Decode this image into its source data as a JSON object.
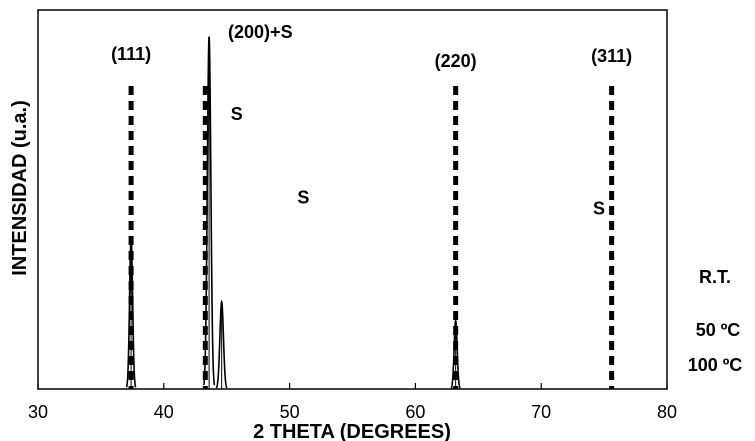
{
  "chart_data": {
    "type": "line",
    "xlabel": "2 THETA (DEGREES)",
    "ylabel": "INTENSIDAD (u.a.)",
    "xlim": [
      30,
      80
    ],
    "ylim": [
      0,
      100
    ],
    "xticks": [
      30,
      40,
      50,
      60,
      70,
      80
    ],
    "grid": false,
    "reference_lines": [
      {
        "label": "(111)",
        "x": 37.4
      },
      {
        "label": "(200)+S",
        "x": 43.3
      },
      {
        "label": "(220)",
        "x": 63.2
      },
      {
        "label": "(311)",
        "x": 75.6
      }
    ],
    "substrate_marks": [
      {
        "label": "S",
        "x": 45.8,
        "y": 71
      },
      {
        "label": "S",
        "x": 51.1,
        "y": 49
      },
      {
        "label": "S",
        "x": 74.6,
        "y": 46
      }
    ],
    "trace_labels": [
      "R.T.",
      "50 ºC",
      "100 ºC"
    ],
    "series": [
      {
        "peaks": [
          {
            "x": 37.4,
            "height": 40,
            "width": 0.12
          },
          {
            "x": 43.6,
            "height": 93,
            "width": 0.14
          },
          {
            "x": 44.6,
            "height": 23,
            "width": 0.14
          },
          {
            "x": 63.2,
            "height": 18,
            "width": 0.12
          }
        ]
      }
    ]
  }
}
